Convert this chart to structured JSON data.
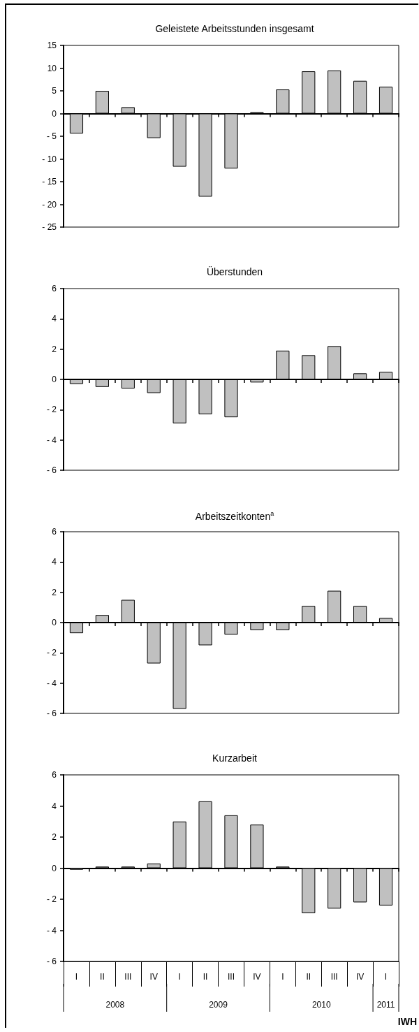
{
  "chart_data": [
    {
      "type": "bar",
      "title": "Geleistete Arbeitsstunden insgesamt",
      "categories": [
        null,
        null,
        null,
        null,
        null,
        null,
        null,
        null,
        null,
        null,
        null,
        null,
        null
      ],
      "values": [
        -4.4,
        5.0,
        1.4,
        -5.4,
        -11.7,
        -18.3,
        -12.1,
        0.3,
        5.3,
        9.3,
        9.5,
        7.2,
        5.9
      ],
      "color": "#c0c0c0",
      "ylim": [
        -25,
        15
      ],
      "yticks": [
        {
          "value": -25,
          "label": "- 25"
        },
        {
          "value": -20,
          "label": "- 20"
        },
        {
          "value": -15,
          "label": "- 15"
        },
        {
          "value": -10,
          "label": "- 10"
        },
        {
          "value": -5,
          "label": "- 5"
        },
        0,
        5,
        10,
        15
      ],
      "tick_labels": "y"
    },
    {
      "type": "bar",
      "title": "Überstunden",
      "categories": [
        null,
        null,
        null,
        null,
        null,
        null,
        null,
        null,
        null,
        null,
        null,
        null,
        null
      ],
      "values": [
        -0.3,
        -0.5,
        -0.6,
        -0.9,
        -2.9,
        -2.3,
        -2.5,
        -0.2,
        1.9,
        1.6,
        2.2,
        0.4,
        0.5
      ],
      "color": "#c0c0c0",
      "ylim": [
        -6,
        6
      ],
      "yticks": [
        {
          "value": -6,
          "label": "- 6"
        },
        {
          "value": -4,
          "label": "- 4"
        },
        {
          "value": -2,
          "label": "- 2"
        },
        0,
        2,
        4,
        6
      ],
      "tick_labels": "y"
    },
    {
      "type": "bar",
      "title": "Arbeitszeitkonten$^{a}$",
      "categories": [
        null,
        null,
        null,
        null,
        null,
        null,
        null,
        null,
        null,
        null,
        null,
        null,
        null
      ],
      "values": [
        -0.7,
        0.5,
        1.5,
        -2.7,
        -5.7,
        -1.5,
        -0.8,
        -0.5,
        -0.5,
        1.1,
        2.1,
        1.1,
        0.3
      ],
      "color": "#c0c0c0",
      "ylim": [
        -6,
        6
      ],
      "yticks": [
        {
          "value": -6,
          "label": "- 6"
        },
        {
          "value": -4,
          "label": "- 4"
        },
        {
          "value": -2,
          "label": "- 2"
        },
        0,
        2,
        4,
        6
      ],
      "tick_labels": "y"
    },
    {
      "type": "bar",
      "title": "Kurzarbeit",
      "categories": [
        "I",
        "II",
        "III",
        "IV",
        "I",
        "II",
        "III",
        "IV",
        "I",
        "II",
        "III",
        "IV",
        "I"
      ],
      "values": [
        -0.1,
        0.1,
        0.1,
        0.3,
        3.0,
        4.3,
        3.4,
        2.8,
        0.1,
        -2.9,
        -2.6,
        -2.2,
        -2.4
      ],
      "color": "#c0c0c0",
      "ylim": [
        -6,
        6
      ],
      "yticks": [
        {
          "value": -6,
          "label": "- 6"
        },
        {
          "value": -4,
          "label": "- 4"
        },
        {
          "value": -2,
          "label": "- 2"
        },
        0,
        2,
        4,
        6
      ],
      "annotations": [
        "2008",
        "2009",
        "2010",
        "2011",
        "IWH"
      ]
    }
  ]
}
